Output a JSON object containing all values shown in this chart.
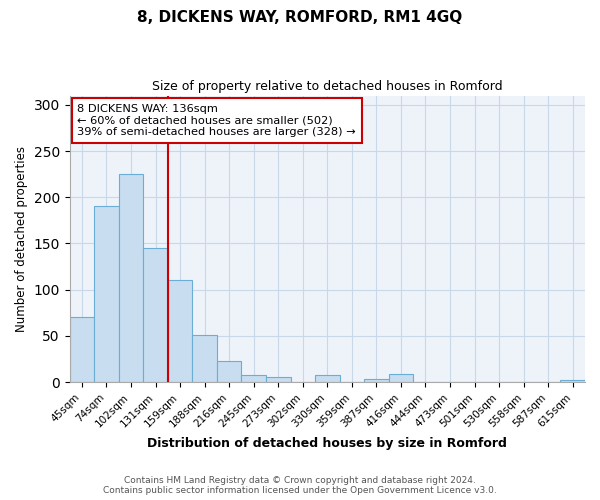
{
  "title": "8, DICKENS WAY, ROMFORD, RM1 4GQ",
  "subtitle": "Size of property relative to detached houses in Romford",
  "xlabel": "Distribution of detached houses by size in Romford",
  "ylabel": "Number of detached properties",
  "bar_labels": [
    "45sqm",
    "74sqm",
    "102sqm",
    "131sqm",
    "159sqm",
    "188sqm",
    "216sqm",
    "245sqm",
    "273sqm",
    "302sqm",
    "330sqm",
    "359sqm",
    "387sqm",
    "416sqm",
    "444sqm",
    "473sqm",
    "501sqm",
    "530sqm",
    "558sqm",
    "587sqm",
    "615sqm"
  ],
  "bar_values": [
    70,
    190,
    225,
    145,
    110,
    51,
    23,
    8,
    5,
    0,
    8,
    0,
    3,
    9,
    0,
    0,
    0,
    0,
    0,
    0,
    2
  ],
  "bar_color": "#c8ddf0",
  "bar_edge_color": "#6aaed6",
  "vline_x": 3.5,
  "vline_color": "#cc0000",
  "annotation_text": "8 DICKENS WAY: 136sqm\n← 60% of detached houses are smaller (502)\n39% of semi-detached houses are larger (328) →",
  "annotation_box_color": "#ffffff",
  "annotation_box_edge": "#cc0000",
  "ylim": [
    0,
    310
  ],
  "footer1": "Contains HM Land Registry data © Crown copyright and database right 2024.",
  "footer2": "Contains public sector information licensed under the Open Government Licence v3.0.",
  "bg_color": "#ffffff",
  "plot_bg_color": "#eef3fa",
  "grid_color": "#c8d8e8"
}
